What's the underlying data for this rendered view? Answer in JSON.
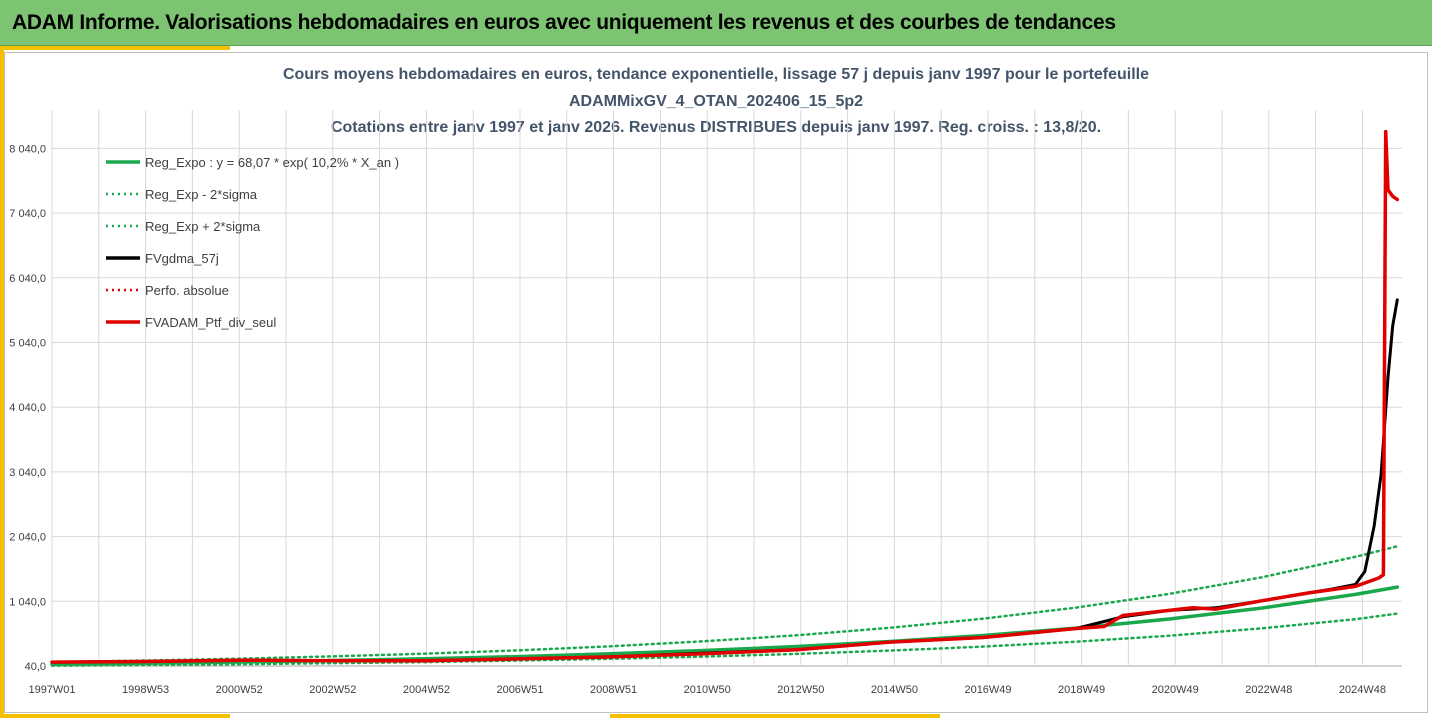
{
  "banner": {
    "title": "ADAM Informe. Valorisations hebdomadaires en euros avec uniquement les revenus et des courbes de tendances"
  },
  "colors": {
    "banner": "#7dc472",
    "accent": "#f5c000",
    "trend": "#1aa84d",
    "black": "#000000",
    "red": "#e00000",
    "grid": "#d9d9d9"
  },
  "chart_data": {
    "type": "line",
    "title_lines": [
      "Cours moyens hebdomadaires  en euros, tendance exponentielle, lissage 57 j depuis janv 1997 pour le portefeuille",
      "ADAMMixGV_4_OTAN_202406_15_5p2",
      "Cotations entre janv 1997 et janv 2026. Revenus DISTRIBUES depuis janv 1997. Reg. croiss. : 13,8/20."
    ],
    "x_tick_labels": [
      "1997W01",
      "1998W53",
      "2000W52",
      "2002W52",
      "2004W52",
      "2006W51",
      "2008W51",
      "2010W50",
      "2012W50",
      "2014W50",
      "2016W49",
      "2018W49",
      "2020W49",
      "2022W48",
      "2024W48"
    ],
    "y_ticks": [
      40,
      1040,
      2040,
      3040,
      4040,
      5040,
      6040,
      7040,
      8040
    ],
    "y_tick_labels": [
      "40,0",
      "1 040,0",
      "2 040,0",
      "3 040,0",
      "4 040,0",
      "5 040,0",
      "6 040,0",
      "7 040,0",
      "8 040,0"
    ],
    "xlim": [
      1997.0,
      2026.0
    ],
    "ylim": [
      40,
      8500
    ],
    "grid": true,
    "legend_position": "top-left",
    "series": [
      {
        "name": "Reg_Expo : y = 68,07 * exp( 10,2% *  X_an )",
        "color": "#1aa84d",
        "style": "solid",
        "x": [
          1997,
          1999,
          2001,
          2003,
          2005,
          2007,
          2009,
          2011,
          2013,
          2015,
          2017,
          2019,
          2021,
          2023,
          2025,
          2025.9
        ],
        "y": [
          68,
          83,
          102,
          125,
          152,
          186,
          228,
          279,
          341,
          418,
          511,
          626,
          766,
          937,
          1147,
          1260
        ]
      },
      {
        "name": "Reg_Exp - 2*sigma",
        "color": "#1aa84d",
        "style": "dotted",
        "x": [
          1997,
          1999,
          2001,
          2003,
          2005,
          2007,
          2009,
          2011,
          2013,
          2015,
          2017,
          2019,
          2021,
          2023,
          2025,
          2025.9
        ],
        "y": [
          45,
          55,
          68,
          83,
          101,
          124,
          152,
          186,
          227,
          278,
          340,
          416,
          509,
          623,
          763,
          850
        ]
      },
      {
        "name": "Reg_Exp + 2*sigma",
        "color": "#1aa84d",
        "style": "dotted",
        "x": [
          1997,
          1999,
          2001,
          2003,
          2005,
          2007,
          2009,
          2011,
          2013,
          2015,
          2017,
          2019,
          2021,
          2023,
          2025,
          2025.9
        ],
        "y": [
          102,
          125,
          153,
          188,
          230,
          281,
          344,
          421,
          515,
          630,
          771,
          943,
          1154,
          1412,
          1728,
          1890
        ]
      },
      {
        "name": "FVgdma_57j",
        "color": "#000000",
        "style": "solid",
        "x": [
          1997,
          1999,
          2001,
          2003,
          2005,
          2007,
          2009,
          2011,
          2013,
          2015,
          2017,
          2019,
          2020,
          2021,
          2022,
          2023,
          2024,
          2024.5,
          2025,
          2025.2,
          2025.4,
          2025.55,
          2025.7,
          2025.8,
          2025.9
        ],
        "y": [
          100,
          110,
          130,
          120,
          120,
          150,
          180,
          240,
          290,
          410,
          480,
          620,
          800,
          900,
          940,
          1050,
          1170,
          1230,
          1300,
          1500,
          2200,
          3000,
          4500,
          5300,
          5700
        ]
      },
      {
        "name": "Perfo. absolue",
        "color": "#e00000",
        "style": "dotted",
        "x": [
          1997,
          1999,
          2001,
          2003,
          2005,
          2007,
          2009,
          2011,
          2013,
          2015,
          2017,
          2019,
          2019.6,
          2020,
          2021,
          2021.5,
          2022,
          2023,
          2024,
          2025,
          2025.5,
          2025.6,
          2025.65,
          2025.7,
          2025.8,
          2025.9
        ],
        "y": [
          100,
          110,
          130,
          120,
          120,
          150,
          180,
          230,
          290,
          410,
          480,
          620,
          650,
          820,
          900,
          940,
          920,
          1050,
          1170,
          1270,
          1400,
          1450,
          8300,
          7400,
          7300,
          7250
        ]
      },
      {
        "name": "FVADAM_Ptf_div_seul",
        "color": "#e00000",
        "style": "solid",
        "x": [
          1997,
          1999,
          2001,
          2003,
          2005,
          2007,
          2009,
          2011,
          2013,
          2015,
          2017,
          2019,
          2019.6,
          2020,
          2021,
          2021.5,
          2022,
          2023,
          2024,
          2025,
          2025.5,
          2025.6,
          2025.65,
          2025.7,
          2025.8,
          2025.9
        ],
        "y": [
          100,
          110,
          130,
          120,
          120,
          150,
          180,
          230,
          290,
          410,
          480,
          620,
          650,
          820,
          900,
          940,
          920,
          1050,
          1170,
          1270,
          1400,
          1450,
          8300,
          7400,
          7300,
          7250
        ]
      }
    ]
  }
}
